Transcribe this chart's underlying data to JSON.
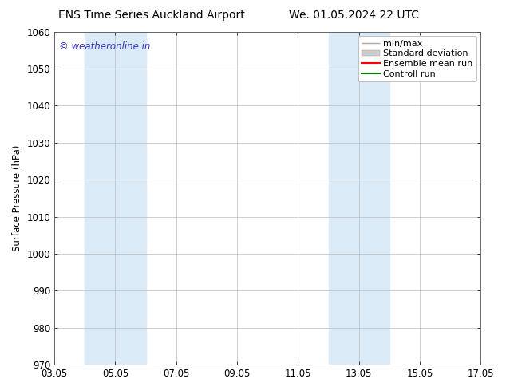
{
  "title_left": "ENS Time Series Auckland Airport",
  "title_right": "We. 01.05.2024 22 UTC",
  "ylabel": "Surface Pressure (hPa)",
  "ylim": [
    970,
    1060
  ],
  "yticks": [
    970,
    980,
    990,
    1000,
    1010,
    1020,
    1030,
    1040,
    1050,
    1060
  ],
  "xtick_labels": [
    "03.05",
    "05.05",
    "07.05",
    "09.05",
    "11.05",
    "13.05",
    "15.05",
    "17.05"
  ],
  "xtick_positions": [
    0,
    2,
    4,
    6,
    8,
    10,
    12,
    14
  ],
  "shaded_regions": [
    {
      "x_start": 1,
      "x_end": 2,
      "color": "#daeaf7"
    },
    {
      "x_start": 2,
      "x_end": 3,
      "color": "#daeaf7"
    },
    {
      "x_start": 9,
      "x_end": 10,
      "color": "#daeaf7"
    },
    {
      "x_start": 10,
      "x_end": 11,
      "color": "#daeaf7"
    }
  ],
  "watermark_text": "© weatheronline.in",
  "watermark_color": "#3333bb",
  "legend_entries": [
    {
      "label": "min/max",
      "color": "#aaaaaa",
      "linewidth": 1.0
    },
    {
      "label": "Standard deviation",
      "color": "#cccccc",
      "linewidth": 6
    },
    {
      "label": "Ensemble mean run",
      "color": "#ff0000",
      "linewidth": 1.5
    },
    {
      "label": "Controll run",
      "color": "#007700",
      "linewidth": 1.5
    }
  ],
  "background_color": "#ffffff",
  "plot_bg_color": "#ffffff",
  "grid_color": "#bbbbbb",
  "font_size": 8.5,
  "title_fontsize": 10
}
